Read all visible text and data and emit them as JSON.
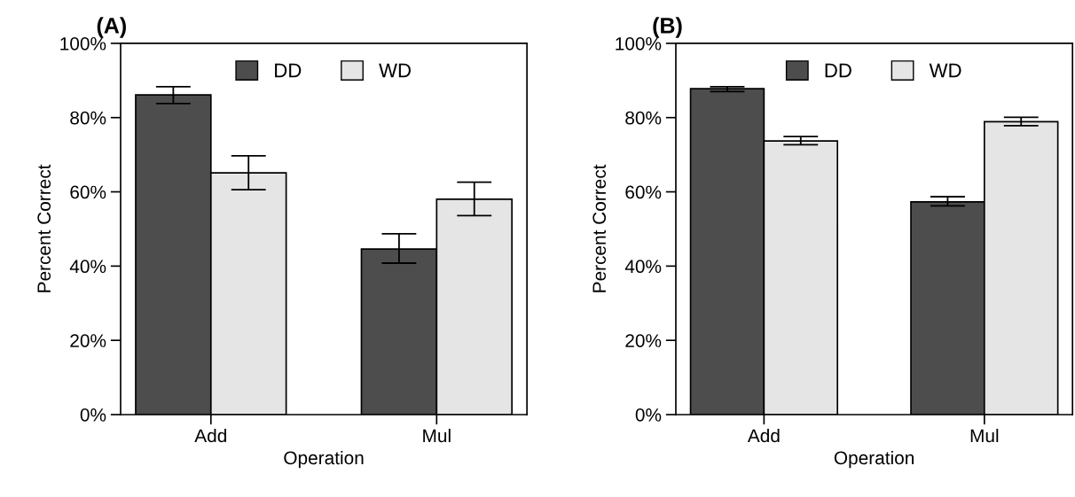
{
  "chart_data": [
    {
      "type": "bar",
      "title": "(A)",
      "xlabel": "Operation",
      "ylabel": "Percent Correct",
      "categories": [
        "Add",
        "Mul"
      ],
      "series": [
        {
          "name": "DD",
          "color": "#4d4d4d",
          "values": [
            86.1,
            44.6
          ],
          "errors": [
            [
              83.8,
              88.3
            ],
            [
              40.8,
              48.7
            ]
          ]
        },
        {
          "name": "WD",
          "color": "#e5e5e5",
          "values": [
            65.1,
            58.0
          ],
          "errors": [
            [
              60.6,
              69.7
            ],
            [
              53.6,
              62.6
            ]
          ]
        }
      ],
      "ylim": [
        0,
        100
      ],
      "yticks": [
        {
          "value": 0,
          "label": "0%"
        },
        {
          "value": 20,
          "label": "20%"
        },
        {
          "value": 40,
          "label": "40%"
        },
        {
          "value": 60,
          "label": "60%"
        },
        {
          "value": 80,
          "label": "80%"
        },
        {
          "value": 100,
          "label": "100%"
        }
      ],
      "legend": "top",
      "grid": false
    },
    {
      "type": "bar",
      "title": "(B)",
      "xlabel": "Operation",
      "ylabel": "Percent Correct",
      "categories": [
        "Add",
        "Mul"
      ],
      "series": [
        {
          "name": "DD",
          "color": "#4d4d4d",
          "values": [
            87.8,
            57.3
          ],
          "errors": [
            [
              87.0,
              88.3
            ],
            [
              56.2,
              58.7
            ]
          ]
        },
        {
          "name": "WD",
          "color": "#e5e5e5",
          "values": [
            73.7,
            78.9
          ],
          "errors": [
            [
              72.7,
              74.9
            ],
            [
              77.8,
              80.1
            ]
          ]
        }
      ],
      "ylim": [
        0,
        100
      ],
      "yticks": [
        {
          "value": 0,
          "label": "0%"
        },
        {
          "value": 20,
          "label": "20%"
        },
        {
          "value": 40,
          "label": "40%"
        },
        {
          "value": 60,
          "label": "60%"
        },
        {
          "value": 80,
          "label": "80%"
        },
        {
          "value": 100,
          "label": "100%"
        }
      ],
      "legend": "top",
      "grid": false
    }
  ]
}
